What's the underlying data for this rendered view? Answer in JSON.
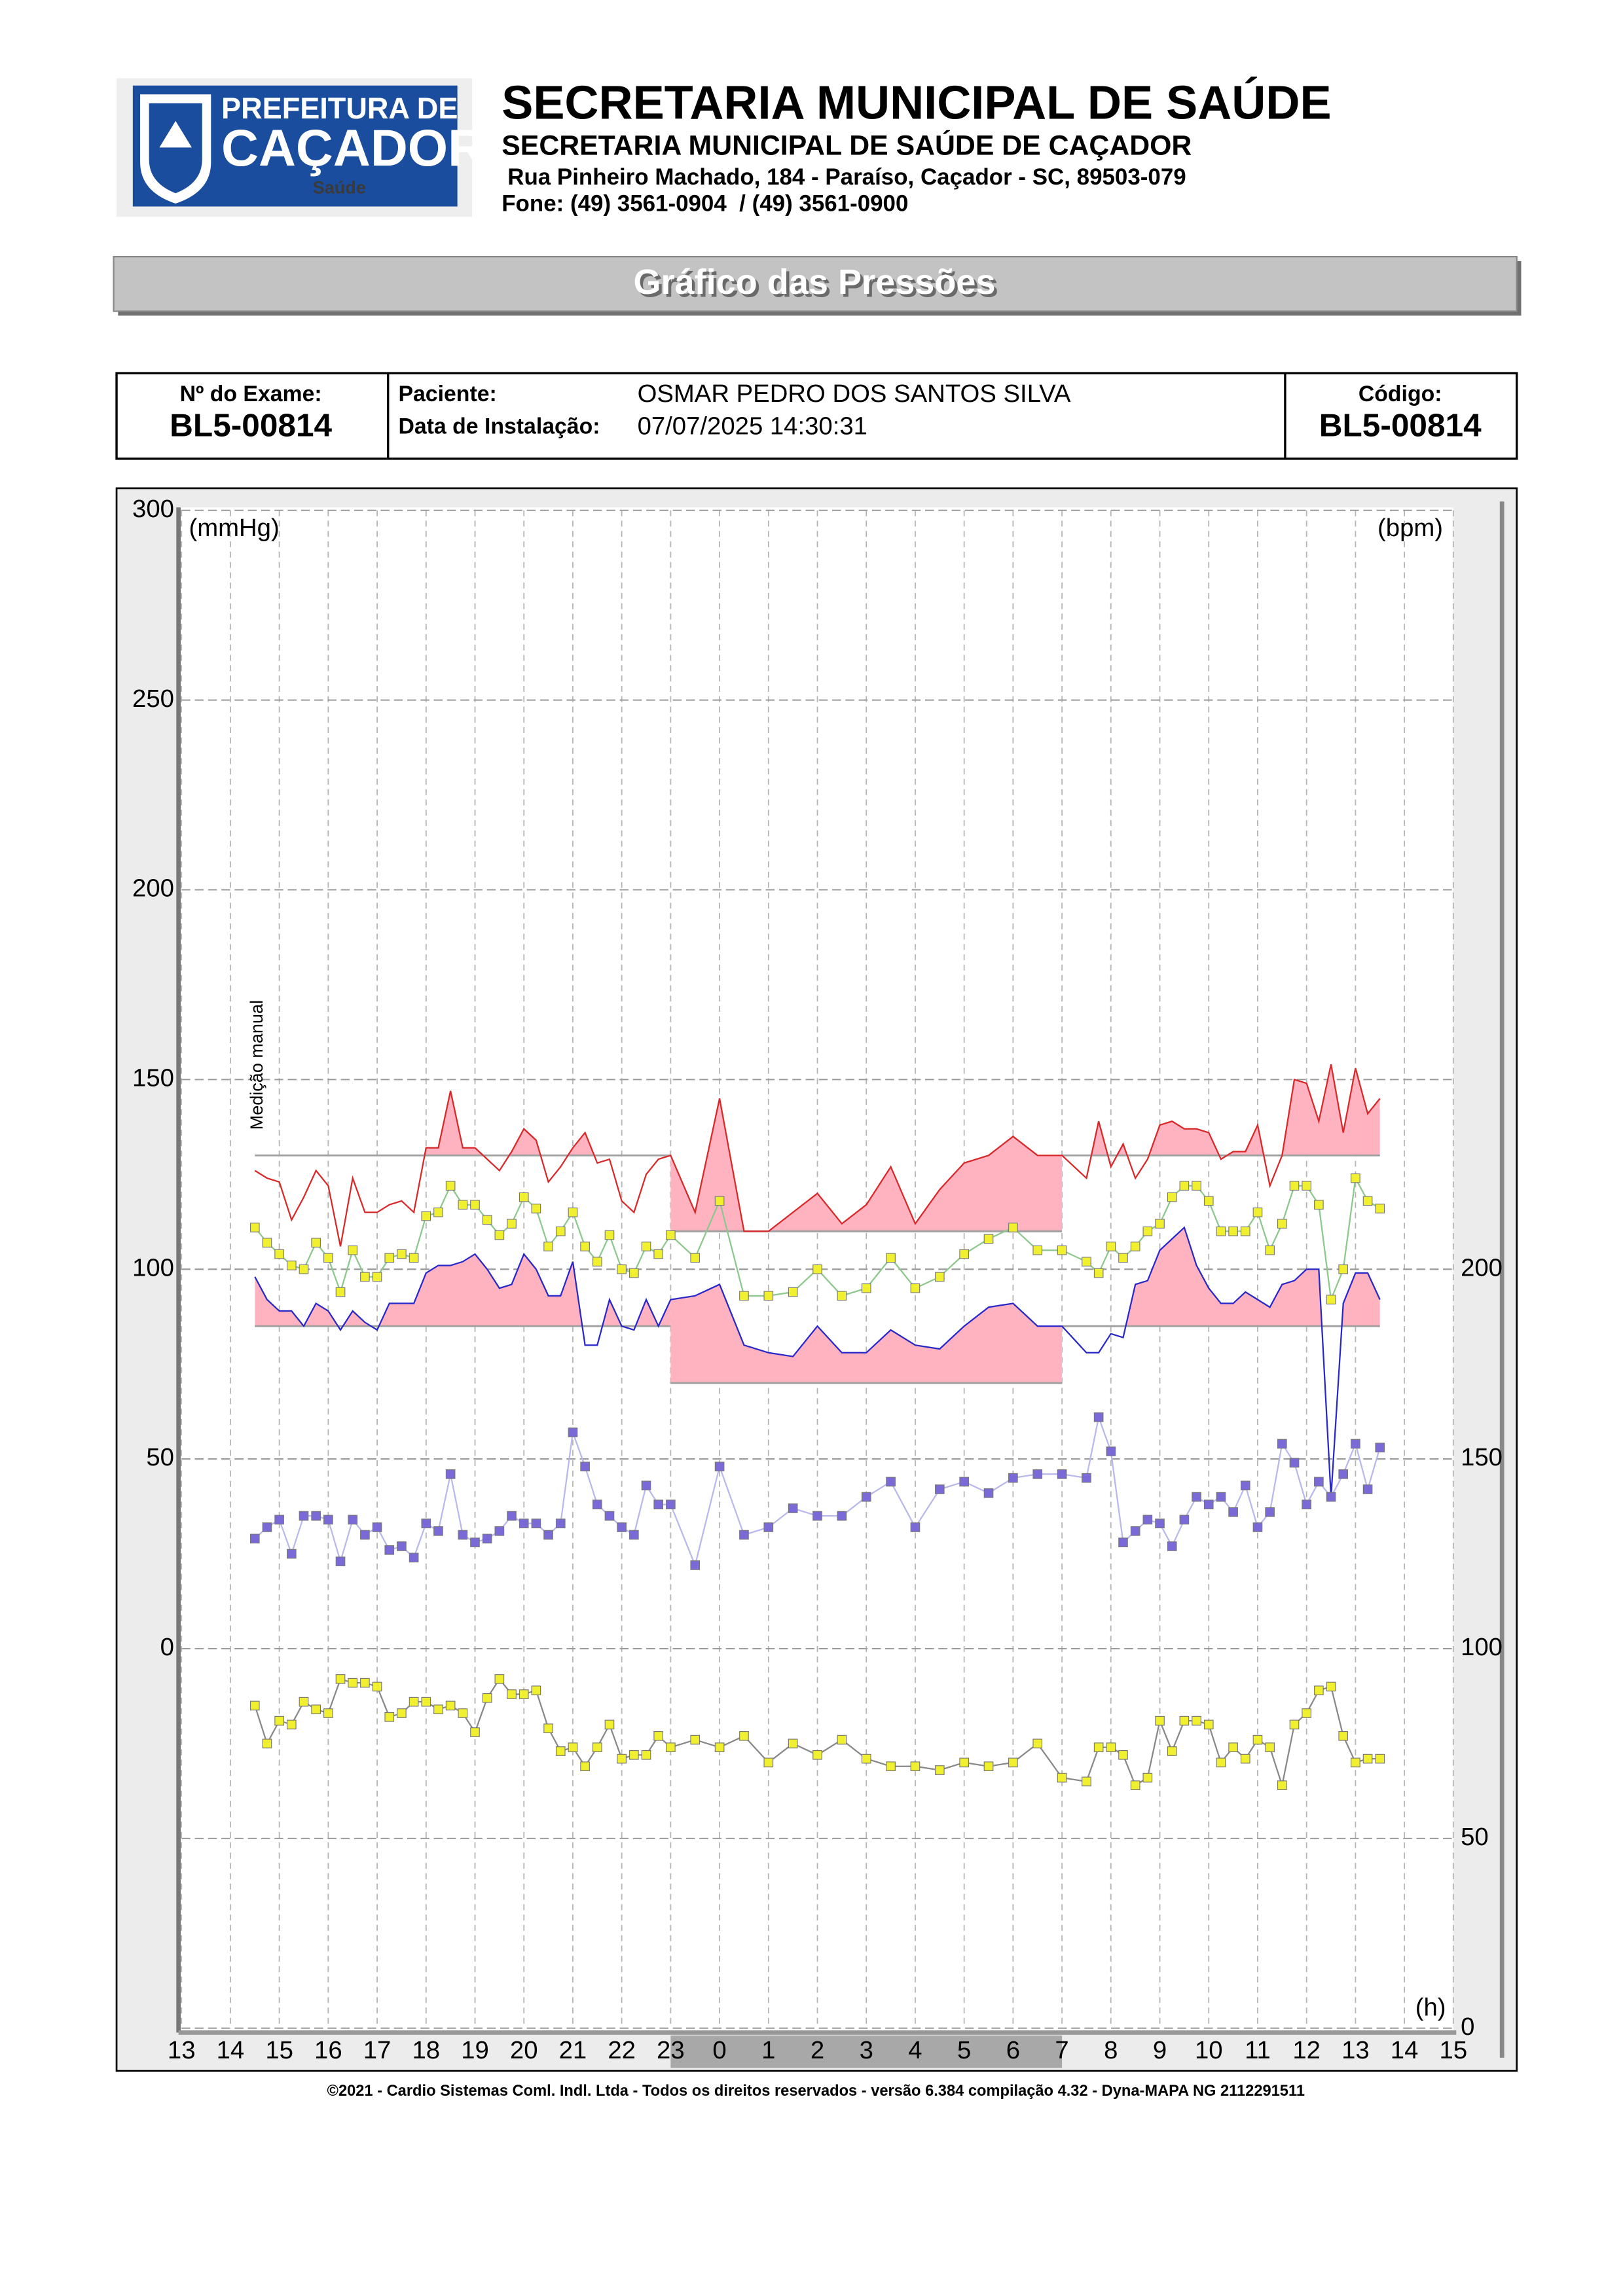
{
  "header": {
    "logo": {
      "line1": "PREFEITURA DE",
      "line2": "CAÇADOR",
      "line3": "Saúde"
    },
    "title": "SECRETARIA MUNICIPAL DE SAÚDE",
    "subtitle": "SECRETARIA MUNICIPAL DE SAÚDE DE CAÇADOR",
    "address": "Rua Pinheiro Machado, 184 - Paraíso, Caçador - SC, 89503-079",
    "phone": "Fone: (49) 3561-0904  / (49) 3561-0900"
  },
  "banner": "Gráfico das Pressões",
  "exam": {
    "number_label": "Nº do Exame:",
    "number": "BL5-00814",
    "patient_label": "Paciente:",
    "patient": "OSMAR PEDRO DOS SANTOS SILVA",
    "install_label": "Data de Instalação:",
    "install": "07/07/2025 14:30:31",
    "code_label": "Código:",
    "code": "BL5-00814"
  },
  "footer": "©2021 - Cardio Sistemas Coml. Indl. Ltda - Todos os direitos reservados - versão 6.384 compilação 4.32 - Dyna-MAPA NG 2112291511",
  "chart_data": {
    "type": "line",
    "ylabel": "(mmHg)",
    "y2label": "(bpm)",
    "xlabel": "(h)",
    "annotation": "Medição manual",
    "xlim": [
      13,
      39
    ],
    "xticks": [
      13,
      14,
      15,
      16,
      17,
      18,
      19,
      20,
      21,
      22,
      23,
      {
        "value": 24,
        "label": "0"
      },
      {
        "value": 25,
        "label": "1"
      },
      {
        "value": 26,
        "label": "2"
      },
      {
        "value": 27,
        "label": "3"
      },
      {
        "value": 28,
        "label": "4"
      },
      {
        "value": 29,
        "label": "5"
      },
      {
        "value": 30,
        "label": "6"
      },
      {
        "value": 31,
        "label": "7"
      },
      {
        "value": 32,
        "label": "8"
      },
      {
        "value": 33,
        "label": "9"
      },
      {
        "value": 34,
        "label": "10"
      },
      {
        "value": 35,
        "label": "11"
      },
      {
        "value": 36,
        "label": "12"
      },
      {
        "value": 37,
        "label": "13"
      },
      {
        "value": 38,
        "label": "14"
      },
      {
        "value": 39,
        "label": "15"
      }
    ],
    "ylim": [
      -100,
      300
    ],
    "yticks": [
      0,
      50,
      100,
      150,
      200,
      250,
      300
    ],
    "y2lim": [
      0,
      400
    ],
    "y2ticks": [
      0,
      50,
      100,
      150,
      200
    ],
    "grid": true,
    "night": [
      23,
      31
    ],
    "periods": [
      [
        14.5,
        23
      ],
      [
        23,
        31
      ],
      [
        31,
        37.5
      ]
    ],
    "fill_color": "#ffb3c1",
    "limit_color": "#a0a0a0",
    "x": [
      14.5,
      14.75,
      15,
      15.25,
      15.5,
      15.75,
      16,
      16.25,
      16.5,
      16.75,
      17,
      17.25,
      17.5,
      17.75,
      18,
      18.25,
      18.5,
      18.75,
      19,
      19.25,
      19.5,
      19.75,
      20,
      20.25,
      20.5,
      20.75,
      21,
      21.25,
      21.5,
      21.75,
      22,
      22.25,
      22.5,
      22.75,
      23,
      23.5,
      24,
      24.5,
      25,
      25.5,
      26,
      26.5,
      27,
      27.5,
      28,
      28.5,
      29,
      29.5,
      30,
      30.5,
      31,
      31.5,
      31.75,
      32,
      32.25,
      32.5,
      32.75,
      33,
      33.25,
      33.5,
      33.75,
      34,
      34.25,
      34.5,
      34.75,
      35,
      35.25,
      35.5,
      35.75,
      36,
      36.25,
      36.5,
      36.75,
      37,
      37.25,
      37.5
    ],
    "series": [
      {
        "color": "#d82828",
        "limits": [
          130,
          110,
          130
        ],
        "values": [
          126,
          124,
          123,
          113,
          119,
          126,
          122,
          106,
          124,
          115,
          115,
          117,
          118,
          115,
          132,
          132,
          147,
          132,
          132,
          129,
          126,
          131,
          137,
          134,
          123,
          127,
          132,
          136,
          128,
          129,
          118,
          115,
          125,
          129,
          130,
          115,
          145,
          110,
          110,
          115,
          120,
          112,
          117,
          127,
          112,
          121,
          128,
          130,
          135,
          130,
          130,
          124,
          139,
          127,
          133,
          124,
          129,
          138,
          139,
          137,
          137,
          136,
          129,
          131,
          131,
          138,
          122,
          130,
          150,
          149,
          139,
          154,
          136,
          153,
          141,
          145
        ]
      },
      {
        "color": "#2828c8",
        "limits": [
          85,
          70,
          85
        ],
        "values": [
          98,
          92,
          89,
          89,
          85,
          91,
          89,
          84,
          89,
          86,
          84,
          91,
          91,
          91,
          99,
          101,
          101,
          102,
          104,
          100,
          95,
          96,
          104,
          100,
          93,
          93,
          102,
          80,
          80,
          92,
          85,
          84,
          92,
          85,
          92,
          93,
          96,
          80,
          78,
          77,
          85,
          78,
          78,
          84,
          80,
          79,
          85,
          90,
          91,
          85,
          85,
          78,
          78,
          83,
          82,
          96,
          97,
          105,
          108,
          111,
          101,
          95,
          91,
          91,
          94,
          92,
          90,
          96,
          97,
          100,
          100,
          40,
          91,
          99,
          99,
          92
        ]
      },
      {
        "color": "#8cc88c",
        "marker_color": "#f0f030",
        "values": [
          111,
          107,
          104,
          101,
          100,
          107,
          103,
          94,
          105,
          98,
          98,
          103,
          104,
          103,
          114,
          115,
          122,
          117,
          117,
          113,
          109,
          112,
          119,
          116,
          106,
          110,
          115,
          106,
          102,
          109,
          100,
          99,
          106,
          104,
          109,
          103,
          118,
          93,
          93,
          94,
          100,
          93,
          95,
          103,
          95,
          98,
          104,
          108,
          111,
          105,
          105,
          102,
          99,
          106,
          103,
          106,
          110,
          112,
          119,
          122,
          122,
          118,
          110,
          110,
          110,
          115,
          105,
          112,
          122,
          122,
          117,
          92,
          100,
          124,
          118,
          116
        ]
      },
      {
        "color": "#b8b8ec",
        "marker_color": "#7a6ad8",
        "values": [
          29,
          32,
          34,
          25,
          35,
          35,
          34,
          23,
          34,
          30,
          32,
          26,
          27,
          24,
          33,
          31,
          46,
          30,
          28,
          29,
          31,
          35,
          33,
          33,
          30,
          33,
          57,
          48,
          38,
          35,
          32,
          30,
          43,
          38,
          38,
          22,
          48,
          30,
          32,
          37,
          35,
          35,
          40,
          44,
          32,
          42,
          44,
          41,
          45,
          46,
          46,
          45,
          61,
          52,
          28,
          31,
          34,
          33,
          27,
          34,
          40,
          38,
          40,
          36,
          43,
          32,
          36,
          54,
          49,
          38,
          44,
          40,
          46,
          54,
          42,
          53
        ]
      },
      {
        "color": "#888888",
        "marker_color": "#f0f030",
        "axis": "y2",
        "values": [
          85,
          75,
          81,
          80,
          86,
          84,
          83,
          92,
          91,
          91,
          90,
          82,
          83,
          86,
          86,
          84,
          85,
          83,
          78,
          87,
          92,
          88,
          88,
          89,
          79,
          73,
          74,
          69,
          74,
          80,
          71,
          72,
          72,
          77,
          74,
          76,
          74,
          77,
          70,
          75,
          72,
          76,
          71,
          69,
          69,
          68,
          70,
          69,
          70,
          75,
          66,
          65,
          74,
          74,
          72,
          64,
          66,
          81,
          73,
          81,
          81,
          80,
          70,
          74,
          71,
          76,
          74,
          64,
          80,
          83,
          89,
          90,
          77,
          70,
          71,
          71
        ]
      }
    ]
  }
}
